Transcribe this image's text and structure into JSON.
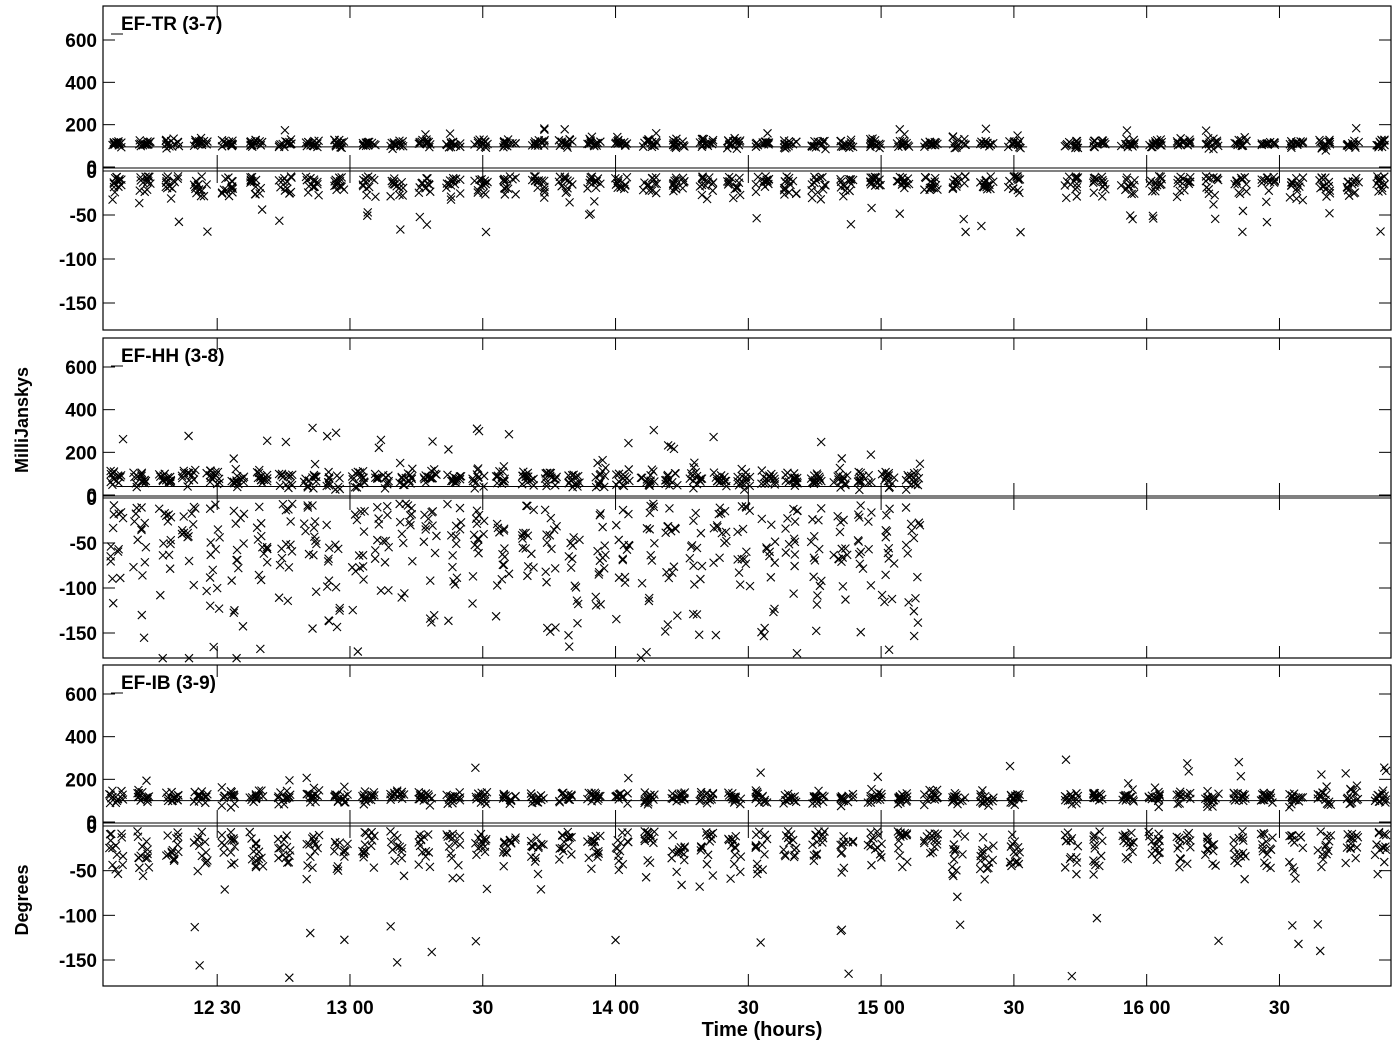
{
  "chart_data": {
    "type": "scatter",
    "title": "",
    "xlabel": "Time (hours)",
    "x_ticks": [
      "12 30",
      "13 00",
      "30",
      "14 00",
      "30",
      "15 00",
      "30",
      "16 00",
      "30"
    ],
    "x_tick_hours": [
      12.5,
      13.0,
      13.5,
      14.0,
      14.5,
      15.0,
      15.5,
      16.0,
      16.5
    ],
    "xlim": [
      12.07,
      16.92
    ],
    "amplitude_axis_label": "MilliJanskys",
    "phase_axis_label": "Degrees",
    "amplitude_ticks": [
      "600",
      "400",
      "200",
      "0"
    ],
    "phase_ticks": [
      "0",
      "-50",
      "-100",
      "-150"
    ],
    "amplitude_ylim": [
      0,
      700
    ],
    "phase_ylim": [
      -180,
      0
    ],
    "panels": [
      {
        "label": "EF-TR (3-7)",
        "amp_mean": 110,
        "amp_model": 95,
        "amp_spread": 22,
        "amp_outlier_max": 185,
        "phase_spread": 12,
        "phase_outlier": -70,
        "x_start": 12.12,
        "x_end": 16.88,
        "gap": [
          15.55,
          15.7
        ],
        "scans": 46
      },
      {
        "label": "EF-HH (3-8)",
        "amp_mean": 75,
        "amp_model": 40,
        "amp_spread": 45,
        "amp_outlier_max": 320,
        "phase_spread": 70,
        "phase_outlier": -175,
        "x_start": 12.12,
        "x_end": 15.12,
        "gap": null,
        "scans": 34
      },
      {
        "label": "EF-IB (3-9)",
        "amp_mean": 115,
        "amp_model": 100,
        "amp_spread": 35,
        "amp_outlier_max": 300,
        "phase_spread": 25,
        "phase_outlier": -170,
        "x_start": 12.12,
        "x_end": 16.88,
        "gap": [
          15.55,
          15.7
        ],
        "scans": 46
      }
    ]
  }
}
